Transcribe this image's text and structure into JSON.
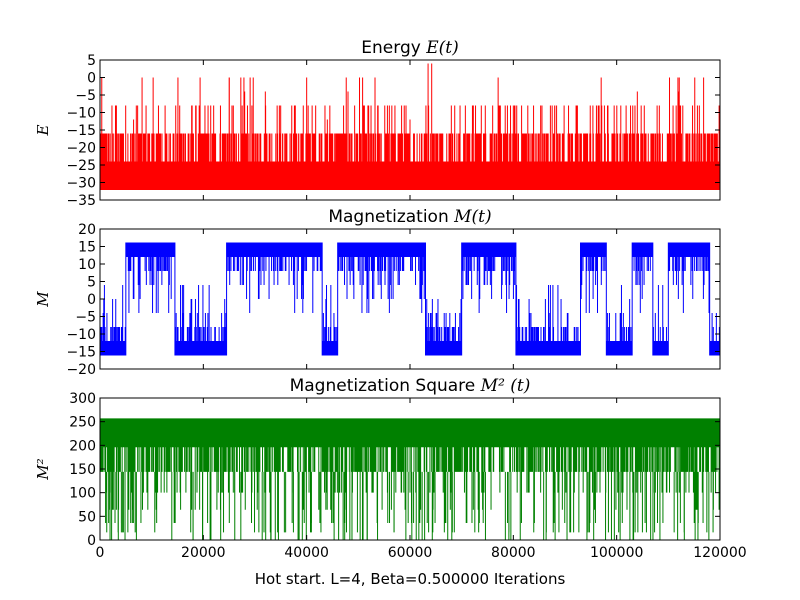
{
  "figure": {
    "xlabel": "Hot start. L=4, Beta=0.500000 Iterations"
  },
  "chart_data": [
    {
      "type": "line",
      "title_text": "Energy",
      "title_math": "E(t)",
      "ylabel": "E",
      "color": "#ff0000",
      "xlim": [
        0,
        120000
      ],
      "ylim": [
        -35,
        5
      ],
      "x_ticks": [
        0,
        20000,
        40000,
        60000,
        80000,
        100000,
        120000
      ],
      "y_ticks": [
        5,
        0,
        -5,
        -10,
        -15,
        -20,
        -25,
        -30,
        -35
      ],
      "show_x_tick_labels": false,
      "baseline": -32,
      "levels": [
        -32,
        -24,
        -16,
        -8,
        0,
        4
      ],
      "events": [
        [
          1000,
          -16
        ],
        [
          3000,
          -8
        ],
        [
          6500,
          -12
        ],
        [
          11000,
          -16
        ],
        [
          18000,
          -16
        ],
        [
          22000,
          -8
        ],
        [
          25000,
          0
        ],
        [
          28000,
          -4
        ],
        [
          32000,
          -4
        ],
        [
          36000,
          -16
        ],
        [
          40000,
          0
        ],
        [
          44000,
          -12
        ],
        [
          48000,
          -4
        ],
        [
          52000,
          -8
        ],
        [
          56000,
          -8
        ],
        [
          60000,
          -12
        ],
        [
          63500,
          4
        ],
        [
          64200,
          4
        ],
        [
          68000,
          -8
        ],
        [
          72000,
          -16
        ],
        [
          76000,
          -8
        ],
        [
          80000,
          -8
        ],
        [
          84000,
          -16
        ],
        [
          88000,
          -8
        ],
        [
          92000,
          -16
        ],
        [
          97000,
          0
        ],
        [
          100000,
          -16
        ],
        [
          104000,
          -4
        ],
        [
          108000,
          -16
        ],
        [
          112000,
          -4
        ],
        [
          116000,
          -8
        ],
        [
          119000,
          -16
        ]
      ],
      "series": [
        {
          "x": [
            0,
            20000,
            40000,
            60000,
            80000,
            100000,
            120000
          ],
          "y": [
            -32,
            -32,
            -32,
            -32,
            -32,
            -32,
            -32
          ]
        }
      ]
    },
    {
      "type": "line",
      "title_text": "Magnetization",
      "title_math": "M(t)",
      "ylabel": "M",
      "color": "#0000ff",
      "xlim": [
        0,
        120000
      ],
      "ylim": [
        -20,
        20
      ],
      "x_ticks": [
        0,
        20000,
        40000,
        60000,
        80000,
        100000,
        120000
      ],
      "y_ticks": [
        20,
        15,
        10,
        5,
        0,
        -5,
        -10,
        -15,
        -20
      ],
      "show_x_tick_labels": false,
      "regime_x": [
        0,
        5000,
        14500,
        24500,
        43000,
        46000,
        63000,
        70000,
        80500,
        93000,
        98000,
        103000,
        107000,
        110000,
        118000,
        120000
      ],
      "regime_sign": [
        -1,
        1,
        -1,
        1,
        -1,
        1,
        -1,
        1,
        -1,
        1,
        -1,
        1,
        -1,
        1,
        -1
      ],
      "series": [
        {
          "x": [
            0,
            5000,
            5000,
            14500,
            14500,
            24500,
            24500,
            43000,
            43000,
            46000,
            46000,
            63000,
            63000,
            70000,
            70000,
            80500,
            80500,
            93000,
            93000,
            98000,
            98000,
            103000,
            103000,
            107000,
            107000,
            110000,
            110000,
            118000,
            118000,
            120000
          ],
          "y": [
            -16,
            -16,
            16,
            16,
            -16,
            -16,
            16,
            16,
            -16,
            -16,
            16,
            16,
            -16,
            -16,
            16,
            16,
            -16,
            -16,
            16,
            16,
            -16,
            -16,
            16,
            16,
            -16,
            -16,
            16,
            16,
            -16,
            -16
          ]
        }
      ]
    },
    {
      "type": "line",
      "title_text": "Magnetization Square",
      "title_math": "M² (t)",
      "ylabel": "M²",
      "color": "#008000",
      "xlim": [
        0,
        120000
      ],
      "ylim": [
        0,
        300
      ],
      "x_ticks": [
        0,
        20000,
        40000,
        60000,
        80000,
        100000,
        120000
      ],
      "y_ticks": [
        300,
        250,
        200,
        150,
        100,
        50,
        0
      ],
      "x_tick_labels": [
        "0",
        "20000",
        "40000",
        "60000",
        "80000",
        "100000",
        "120000"
      ],
      "show_x_tick_labels": true,
      "top_level": 256,
      "band_bottom": 144,
      "series": [
        {
          "x": [
            0,
            20000,
            40000,
            60000,
            80000,
            100000,
            120000
          ],
          "y": [
            256,
            256,
            256,
            256,
            256,
            256,
            256
          ]
        }
      ]
    }
  ]
}
